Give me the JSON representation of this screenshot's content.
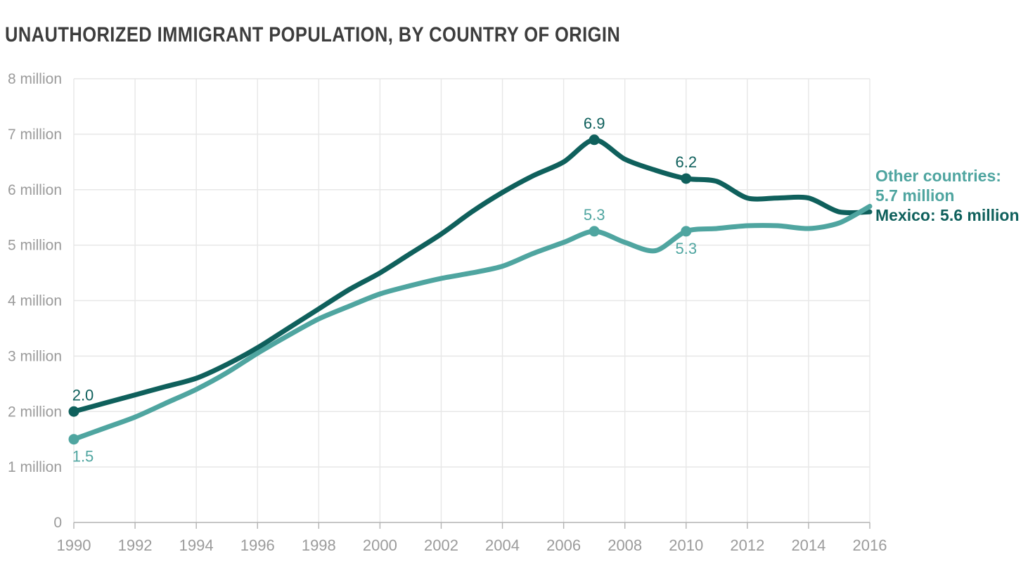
{
  "title": "UNAUTHORIZED IMMIGRANT POPULATION, BY COUNTRY OF ORIGIN",
  "colors": {
    "mexico": "#0f605c",
    "other": "#4fa5a0",
    "grid": "#e7e7e7",
    "axis": "#b3b3b3",
    "tick_label": "#9b9b9b",
    "title_text": "#3d3d3d"
  },
  "legend": {
    "other": "Other countries:\n5.7 million",
    "mexico": "Mexico: 5.6 million"
  },
  "chart_data": {
    "type": "line",
    "title": "UNAUTHORIZED IMMIGRANT POPULATION, BY COUNTRY OF ORIGIN",
    "xlabel": "",
    "ylabel": "",
    "xlim": [
      1990,
      2016
    ],
    "ylim": [
      0,
      8
    ],
    "grid": true,
    "x": [
      1990,
      1991,
      1992,
      1993,
      1994,
      1995,
      1996,
      1997,
      1998,
      1999,
      2000,
      2001,
      2002,
      2003,
      2004,
      2005,
      2006,
      2007,
      2008,
      2009,
      2010,
      2011,
      2012,
      2013,
      2014,
      2015,
      2016
    ],
    "series": [
      {
        "name": "Mexico",
        "color_key": "mexico",
        "values": [
          2.0,
          2.15,
          2.3,
          2.45,
          2.6,
          2.85,
          3.15,
          3.5,
          3.85,
          4.2,
          4.5,
          4.85,
          5.2,
          5.6,
          5.95,
          6.25,
          6.5,
          6.9,
          6.55,
          6.35,
          6.2,
          6.15,
          5.85,
          5.85,
          5.85,
          5.6,
          5.6
        ]
      },
      {
        "name": "Other countries",
        "color_key": "other",
        "values": [
          1.5,
          1.7,
          1.9,
          2.15,
          2.4,
          2.7,
          3.05,
          3.37,
          3.67,
          3.9,
          4.12,
          4.27,
          4.4,
          4.5,
          4.62,
          4.85,
          5.05,
          5.25,
          5.05,
          4.9,
          5.25,
          5.3,
          5.35,
          5.35,
          5.3,
          5.4,
          5.7
        ]
      }
    ],
    "xticks": [
      1990,
      1992,
      1994,
      1996,
      1998,
      2000,
      2002,
      2004,
      2006,
      2008,
      2010,
      2012,
      2014,
      2016
    ],
    "yticks": [
      {
        "value": 0,
        "label": "0"
      },
      {
        "value": 1,
        "label": "1 million"
      },
      {
        "value": 2,
        "label": "2 million"
      },
      {
        "value": 3,
        "label": "3 million"
      },
      {
        "value": 4,
        "label": "4 million"
      },
      {
        "value": 5,
        "label": "5 million"
      },
      {
        "value": 6,
        "label": "6 million"
      },
      {
        "value": 7,
        "label": "7 million"
      },
      {
        "value": 8,
        "label": "8 million"
      }
    ],
    "markers": [
      {
        "series": "Mexico",
        "year": 1990,
        "value": 2.0,
        "label": "2.0",
        "label_position": "above",
        "label_dx": 13
      },
      {
        "series": "Other countries",
        "year": 1990,
        "value": 1.5,
        "label": "1.5",
        "label_position": "below",
        "label_dx": 13
      },
      {
        "series": "Mexico",
        "year": 2007,
        "value": 6.9,
        "label": "6.9",
        "label_position": "above",
        "label_dx": 0
      },
      {
        "series": "Other countries",
        "year": 2007,
        "value": 5.25,
        "label": "5.3",
        "label_position": "above",
        "label_dx": 0
      },
      {
        "series": "Mexico",
        "year": 2010,
        "value": 6.2,
        "label": "6.2",
        "label_position": "above",
        "label_dx": 0
      },
      {
        "series": "Other countries",
        "year": 2010,
        "value": 5.25,
        "label": "5.3",
        "label_position": "below",
        "label_dx": 0
      }
    ],
    "legend_position": "right-of-line-ends"
  }
}
